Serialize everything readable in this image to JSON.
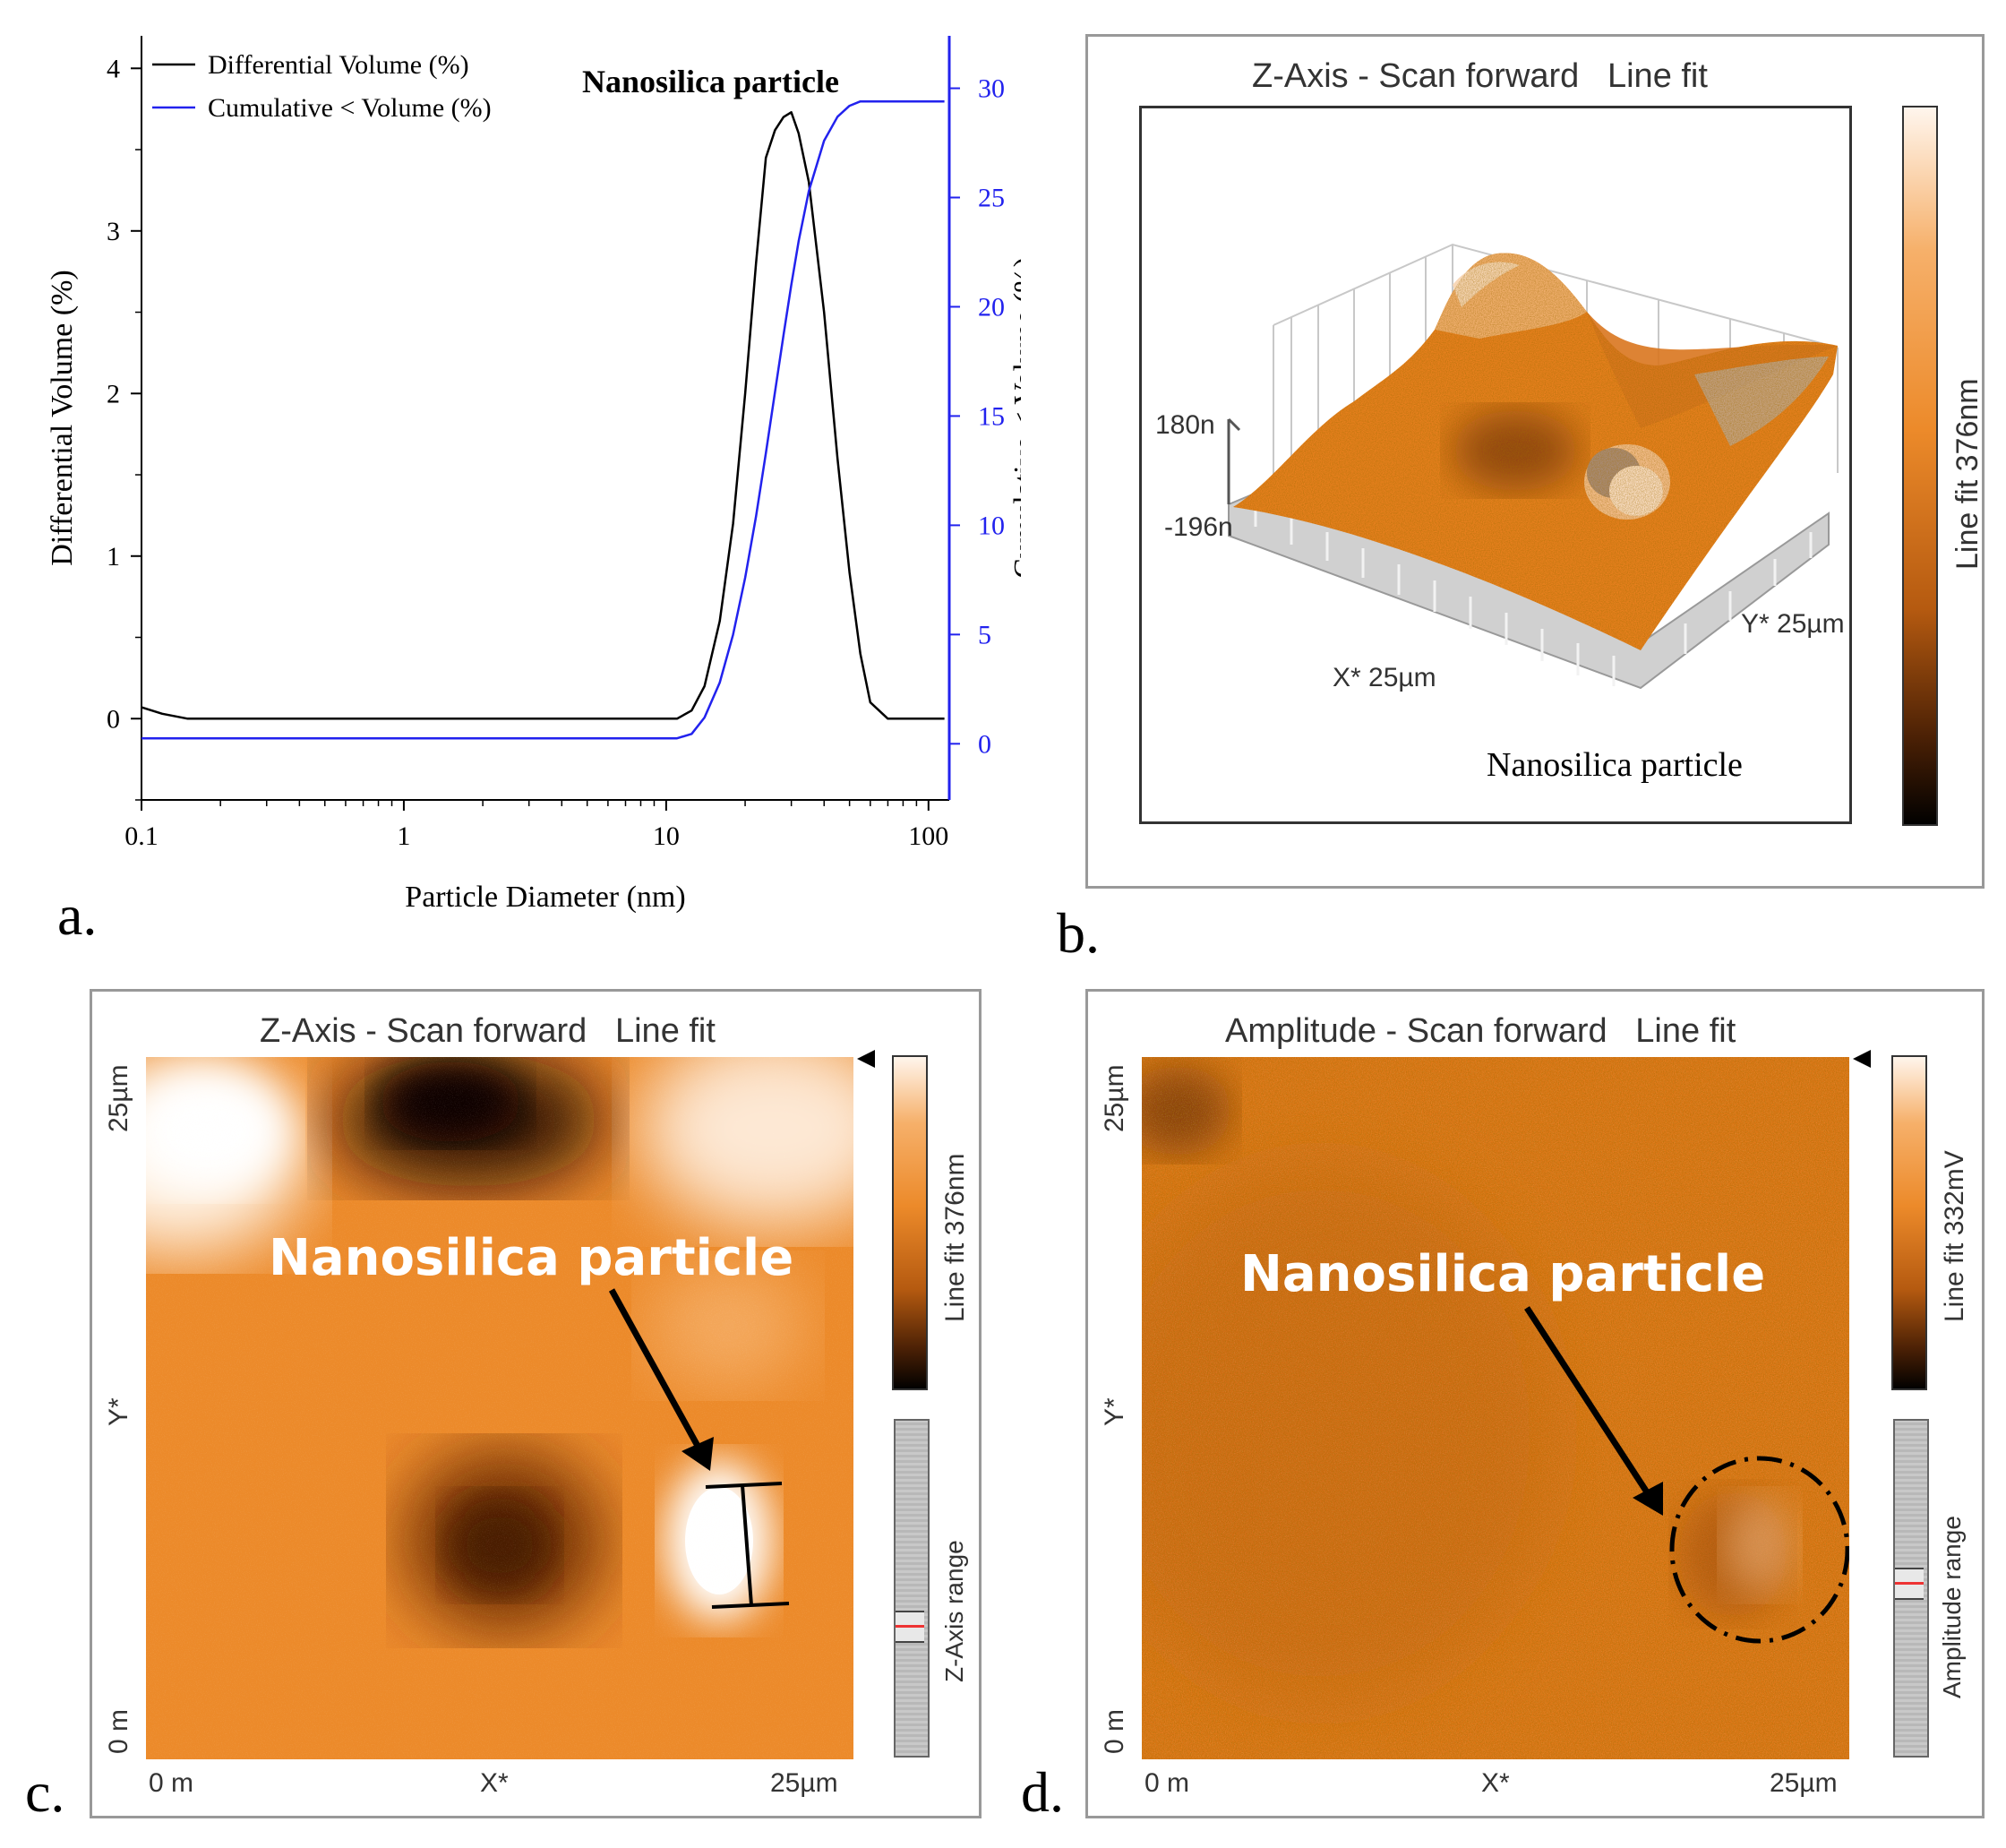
{
  "panel_labels": {
    "a": "a.",
    "b": "b.",
    "c": "c.",
    "d": "d."
  },
  "panel_a": {
    "annotation": "Nanosilica particle"
  },
  "chart_data": {
    "type": "line",
    "title": "Nanosilica particle",
    "xlabel": "Particle Diameter (nm)",
    "ylabel": "Differential Volume (%)",
    "y2label": "Cumulative < Volume (%)",
    "xscale": "log",
    "xlim": [
      0.1,
      120
    ],
    "ylim": [
      -0.5,
      4.2
    ],
    "y2lim": [
      -2.57,
      32.4
    ],
    "xticks": [
      0.1,
      1,
      10,
      100
    ],
    "xtick_labels": [
      "0.1",
      "1",
      "10",
      "100"
    ],
    "yticks": [
      0,
      1,
      2,
      3,
      4
    ],
    "ytick_labels": [
      "0",
      "1",
      "2",
      "3",
      "4"
    ],
    "y2ticks": [
      0,
      5,
      10,
      15,
      20,
      25,
      30
    ],
    "y2tick_labels": [
      "0",
      "5",
      "10",
      "15",
      "20",
      "25",
      "30"
    ],
    "legend": "top-left",
    "series": [
      {
        "name": "Differential Volume (%)",
        "axis": "left",
        "color": "#000000",
        "x": [
          0.1,
          0.12,
          0.15,
          0.3,
          1,
          5,
          11,
          12.5,
          14,
          16,
          18,
          20,
          22,
          24,
          26,
          28,
          30,
          32,
          35,
          40,
          45,
          50,
          55,
          60,
          70,
          100,
          115
        ],
        "y": [
          0.07,
          0.03,
          0.0,
          0.0,
          0.0,
          0.0,
          0.0,
          0.05,
          0.2,
          0.6,
          1.2,
          2.0,
          2.8,
          3.45,
          3.62,
          3.7,
          3.73,
          3.6,
          3.3,
          2.5,
          1.6,
          0.9,
          0.4,
          0.1,
          0.0,
          0.0,
          0.0
        ]
      },
      {
        "name": "Cumulative < Volume (%)",
        "axis": "right",
        "color": "#2222ee",
        "x": [
          0.1,
          1,
          5,
          11,
          12.5,
          14,
          16,
          18,
          20,
          22,
          24,
          26,
          28,
          30,
          32,
          35,
          40,
          45,
          50,
          55,
          60,
          70,
          100,
          115
        ],
        "y": [
          0.25,
          0.25,
          0.25,
          0.25,
          0.45,
          1.2,
          2.8,
          5.0,
          7.6,
          10.4,
          13.3,
          16.1,
          18.7,
          21.0,
          23.0,
          25.3,
          27.6,
          28.7,
          29.2,
          29.4,
          29.4,
          29.4,
          29.4,
          29.4
        ]
      }
    ]
  },
  "panel_b": {
    "title": "Z-Axis - Scan forward   Line fit",
    "z_top": "180n",
    "z_bottom": "-196n",
    "x_label": "X* 25µm",
    "y_label": "Y* 25µm",
    "annotation": "Nanosilica particle",
    "colorbar_label": "Line fit 376nm"
  },
  "panel_c": {
    "title": "Z-Axis - Scan forward   Line fit",
    "y_top": "25µm",
    "y_mid": "Y*",
    "y_bottom": "0 m",
    "x_left": "0 m",
    "x_mid": "X*",
    "x_right": "25µm",
    "annotation": "Nanosilica particle",
    "colorbar_label": "Line fit 376nm",
    "range_label": "Z-Axis range"
  },
  "panel_d": {
    "title": "Amplitude - Scan forward   Line fit",
    "y_top": "25µm",
    "y_mid": "Y*",
    "y_bottom": "0 m",
    "x_left": "0 m",
    "x_mid": "X*",
    "x_right": "25µm",
    "annotation": "Nanosilica particle",
    "colorbar_label": "Line fit 332mV",
    "range_label": "Amplitude range"
  },
  "colors": {
    "orange": "#e8801e",
    "blue_axis": "#2222ee",
    "frame": "#333333"
  }
}
